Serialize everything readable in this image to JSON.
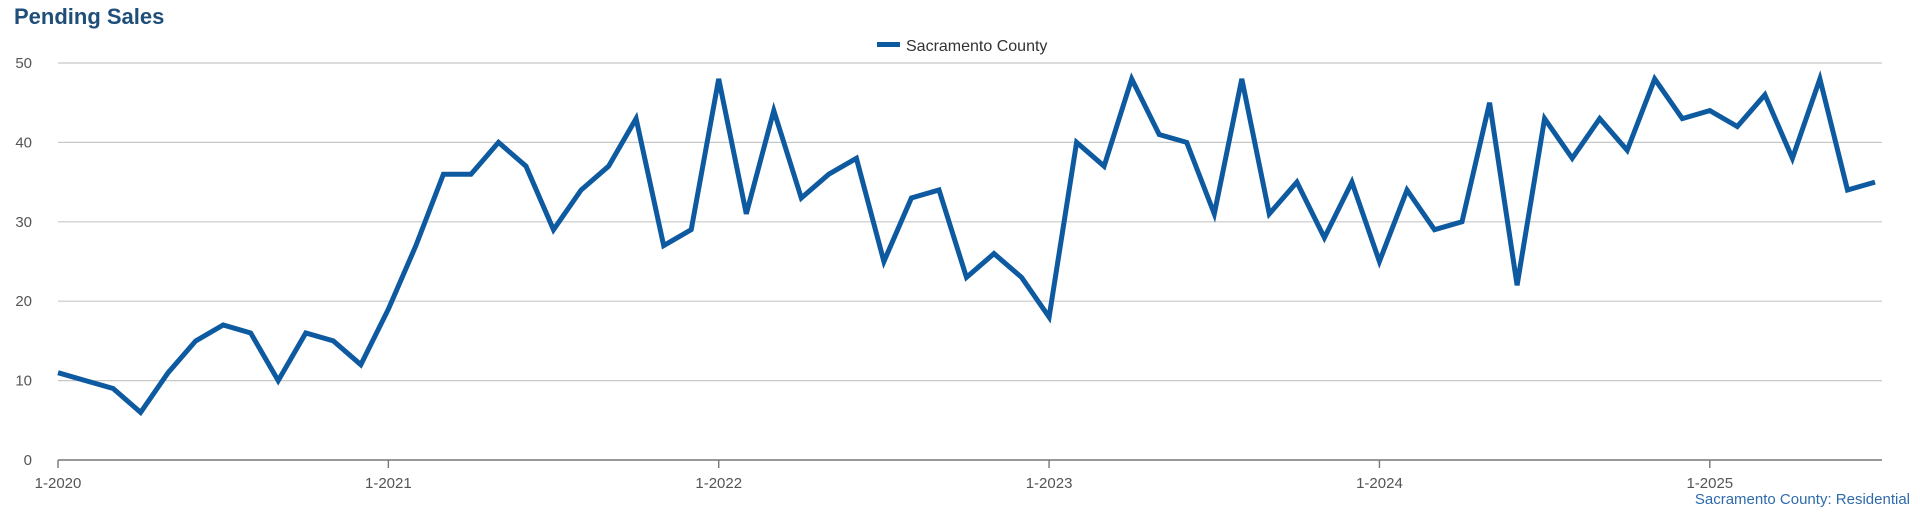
{
  "title": "Pending Sales",
  "footer": "Sacramento County: Residential",
  "colors": {
    "series": "#0e5aa0",
    "grid": "#c8c8c8",
    "axis": "#777777"
  },
  "chart_data": {
    "type": "line",
    "title": "Pending Sales",
    "legend": "top-center",
    "grid": true,
    "ylim": [
      0,
      50
    ],
    "yticks": [
      0,
      10,
      20,
      30,
      40,
      50
    ],
    "xticks": [
      "1-2020",
      "1-2021",
      "1-2022",
      "1-2023",
      "1-2024",
      "1-2025"
    ],
    "x_start": "1-2020",
    "x_end": "7-2025",
    "series": [
      {
        "name": "Sacramento County",
        "values": [
          11,
          10,
          9,
          6,
          11,
          15,
          17,
          16,
          10,
          16,
          15,
          12,
          19,
          27,
          36,
          36,
          40,
          37,
          29,
          34,
          37,
          43,
          27,
          29,
          48,
          31,
          44,
          33,
          36,
          38,
          25,
          33,
          34,
          23,
          26,
          23,
          18,
          40,
          37,
          48,
          41,
          40,
          31,
          48,
          31,
          35,
          28,
          35,
          25,
          34,
          29,
          30,
          45,
          22,
          43,
          38,
          43,
          39,
          48,
          43,
          44,
          42,
          46,
          38,
          48,
          34,
          35
        ]
      }
    ]
  }
}
